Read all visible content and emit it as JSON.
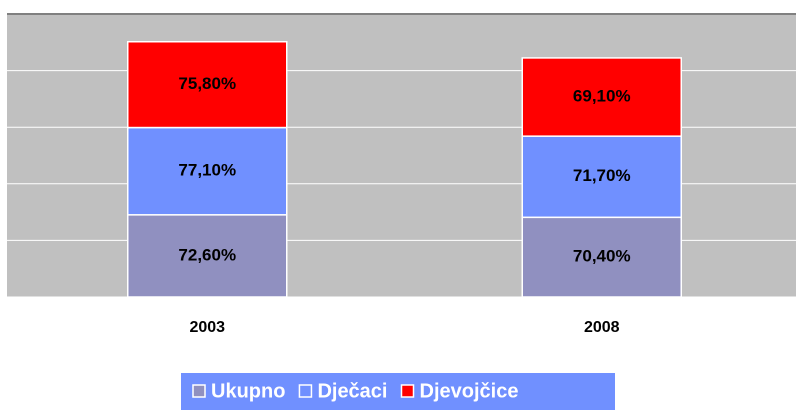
{
  "chart_data": {
    "type": "stacked_bar",
    "categories": [
      "2003",
      "2008"
    ],
    "series": [
      {
        "name": "Ukupno",
        "color": "#9090c0",
        "values": [
          72.6,
          70.4
        ],
        "value_labels": [
          "72,60%",
          "70,40%"
        ]
      },
      {
        "name": "Dječaci",
        "color": "#7090ff",
        "values": [
          77.1,
          71.7
        ],
        "value_labels": [
          "77,10%",
          "71,70%"
        ]
      },
      {
        "name": "Djevojčice",
        "color": "#ff0000",
        "values": [
          75.8,
          69.1
        ],
        "value_labels": [
          "75,80%",
          "69,10%"
        ]
      }
    ],
    "ylim": [
      0,
      250
    ],
    "yticks": [
      0,
      50,
      100,
      150,
      200,
      250
    ],
    "grid": true,
    "legend": "bottom",
    "plot_background": "#c0c0c0",
    "legend_background": "#7090ff"
  }
}
